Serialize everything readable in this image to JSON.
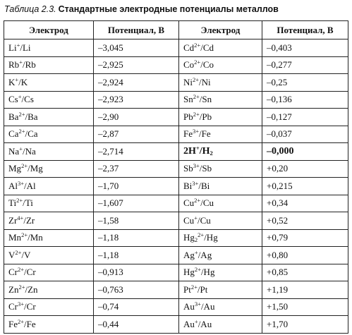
{
  "caption": {
    "label": "Таблица 2.3.",
    "title": "Стандартные электродные потенциалы металлов"
  },
  "headers": [
    "Электрод",
    "Потенциал, В",
    "Электрод",
    "Потенциал, В"
  ],
  "rows": [
    {
      "left": {
        "electrode": [
          [
            "Li"
          ],
          [
            "+",
            "sup"
          ],
          [
            "/Li"
          ]
        ],
        "potential": "–3,045"
      },
      "right": {
        "electrode": [
          [
            "Cd"
          ],
          [
            "2+",
            "sup"
          ],
          [
            "/Cd"
          ]
        ],
        "potential": "–0,403"
      }
    },
    {
      "left": {
        "electrode": [
          [
            "Rb"
          ],
          [
            "+",
            "sup"
          ],
          [
            "/Rb"
          ]
        ],
        "potential": "–2,925"
      },
      "right": {
        "electrode": [
          [
            "Co"
          ],
          [
            "2+",
            "sup"
          ],
          [
            "/Co"
          ]
        ],
        "potential": "–0,277"
      }
    },
    {
      "left": {
        "electrode": [
          [
            "K"
          ],
          [
            "+",
            "sup"
          ],
          [
            "/K"
          ]
        ],
        "potential": "–2,924"
      },
      "right": {
        "electrode": [
          [
            "Ni"
          ],
          [
            "2+",
            "sup"
          ],
          [
            "/Ni"
          ]
        ],
        "potential": "–0,25"
      }
    },
    {
      "left": {
        "electrode": [
          [
            "Cs"
          ],
          [
            "+",
            "sup"
          ],
          [
            "/Cs"
          ]
        ],
        "potential": "–2,923"
      },
      "right": {
        "electrode": [
          [
            "Sn"
          ],
          [
            "2+",
            "sup"
          ],
          [
            "/Sn"
          ]
        ],
        "potential": "–0,136"
      }
    },
    {
      "left": {
        "electrode": [
          [
            "Ba"
          ],
          [
            "2+",
            "sup"
          ],
          [
            "/Ba"
          ]
        ],
        "potential": "–2,90"
      },
      "right": {
        "electrode": [
          [
            "Pb"
          ],
          [
            "2+",
            "sup"
          ],
          [
            "/Pb"
          ]
        ],
        "potential": "–0,127"
      }
    },
    {
      "left": {
        "electrode": [
          [
            "Ca"
          ],
          [
            "2+",
            "sup"
          ],
          [
            "/Ca"
          ]
        ],
        "potential": "–2,87"
      },
      "right": {
        "electrode": [
          [
            "Fe"
          ],
          [
            "3+",
            "sup"
          ],
          [
            "/Fe"
          ]
        ],
        "potential": "–0,037"
      }
    },
    {
      "left": {
        "electrode": [
          [
            "Na"
          ],
          [
            "+",
            "sup"
          ],
          [
            "/Na"
          ]
        ],
        "potential": "–2,714"
      },
      "right": {
        "electrode": [
          [
            "2H"
          ],
          [
            "+",
            "sup"
          ],
          [
            "/H"
          ],
          [
            "2",
            "sub"
          ]
        ],
        "potential": "–0,000",
        "bold": true
      }
    },
    {
      "left": {
        "electrode": [
          [
            "Mg"
          ],
          [
            "2+",
            "sup"
          ],
          [
            "/Mg"
          ]
        ],
        "potential": "–2,37"
      },
      "right": {
        "electrode": [
          [
            "Sb"
          ],
          [
            "3+",
            "sup"
          ],
          [
            "/Sb"
          ]
        ],
        "potential": "+0,20"
      }
    },
    {
      "left": {
        "electrode": [
          [
            "Al"
          ],
          [
            "3+",
            "sup"
          ],
          [
            "/Al"
          ]
        ],
        "potential": "–1,70"
      },
      "right": {
        "electrode": [
          [
            "Bi"
          ],
          [
            "3+",
            "sup"
          ],
          [
            "/Bi"
          ]
        ],
        "potential": "+0,215"
      }
    },
    {
      "left": {
        "electrode": [
          [
            "Ti"
          ],
          [
            "2+",
            "sup"
          ],
          [
            "/Ti"
          ]
        ],
        "potential": "–1,607"
      },
      "right": {
        "electrode": [
          [
            "Cu"
          ],
          [
            "2+",
            "sup"
          ],
          [
            "/Cu"
          ]
        ],
        "potential": "+0,34"
      }
    },
    {
      "left": {
        "electrode": [
          [
            "Zr"
          ],
          [
            "4+",
            "sup"
          ],
          [
            "/Zr"
          ]
        ],
        "potential": "–1,58"
      },
      "right": {
        "electrode": [
          [
            "Cu"
          ],
          [
            "+",
            "sup"
          ],
          [
            "/Cu"
          ]
        ],
        "potential": "+0,52"
      }
    },
    {
      "left": {
        "electrode": [
          [
            "Mn"
          ],
          [
            "2+",
            "sup"
          ],
          [
            "/Mn"
          ]
        ],
        "potential": "–1,18"
      },
      "right": {
        "electrode": [
          [
            "Hg"
          ],
          [
            "2",
            "sub"
          ],
          [
            "2+",
            "sup"
          ],
          [
            "/Hg"
          ]
        ],
        "potential": "+0,79"
      }
    },
    {
      "left": {
        "electrode": [
          [
            "V"
          ],
          [
            "2+",
            "sup"
          ],
          [
            "/V"
          ]
        ],
        "potential": "–1,18"
      },
      "right": {
        "electrode": [
          [
            "Ag"
          ],
          [
            "+",
            "sup"
          ],
          [
            "/Ag"
          ]
        ],
        "potential": "+0,80"
      }
    },
    {
      "left": {
        "electrode": [
          [
            "Cr"
          ],
          [
            "2+",
            "sup"
          ],
          [
            "/Cr"
          ]
        ],
        "potential": "–0,913"
      },
      "right": {
        "electrode": [
          [
            "Hg"
          ],
          [
            "2+",
            "sup"
          ],
          [
            "/Hg"
          ]
        ],
        "potential": "+0,85"
      }
    },
    {
      "left": {
        "electrode": [
          [
            "Zn"
          ],
          [
            "2+",
            "sup"
          ],
          [
            "/Zn"
          ]
        ],
        "potential": "–0,763"
      },
      "right": {
        "electrode": [
          [
            "Pt"
          ],
          [
            "2+",
            "sup"
          ],
          [
            "/Pt"
          ]
        ],
        "potential": "+1,19"
      }
    },
    {
      "left": {
        "electrode": [
          [
            "Cr"
          ],
          [
            "3+",
            "sup"
          ],
          [
            "/Cr"
          ]
        ],
        "potential": "–0,74"
      },
      "right": {
        "electrode": [
          [
            "Au"
          ],
          [
            "3+",
            "sup"
          ],
          [
            "/Au"
          ]
        ],
        "potential": "+1,50"
      }
    },
    {
      "left": {
        "electrode": [
          [
            "Fe"
          ],
          [
            "2+",
            "sup"
          ],
          [
            "/Fe"
          ]
        ],
        "potential": "–0,44"
      },
      "right": {
        "electrode": [
          [
            "Au"
          ],
          [
            "+",
            "sup"
          ],
          [
            "/Au"
          ]
        ],
        "potential": "+1,70"
      }
    }
  ]
}
